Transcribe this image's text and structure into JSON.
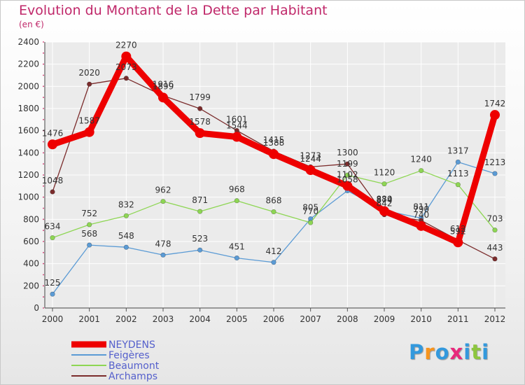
{
  "title": "Evolution du Montant de la Dette par Habitant",
  "subtitle": "(en €)",
  "logo": {
    "text": "Proxiti",
    "colors": [
      "#3399dd",
      "#f7941d",
      "#3399dd",
      "#e8297c",
      "#3399dd",
      "#8dc63f",
      "#3399dd"
    ]
  },
  "chart_data": {
    "type": "line",
    "title": "Evolution du Montant de la Dette par Habitant",
    "ylabel": "(en €)",
    "x": [
      "2000",
      "2001",
      "2002",
      "2003",
      "2004",
      "2005",
      "2006",
      "2007",
      "2008",
      "2009",
      "2010",
      "2011",
      "2012"
    ],
    "ylim": [
      0,
      2400
    ],
    "yticks": [
      0,
      200,
      400,
      600,
      800,
      1000,
      1200,
      1400,
      1600,
      1800,
      2000,
      2200,
      2400
    ],
    "grid": true,
    "legend_position": "bottom-left",
    "series": [
      {
        "name": "NEYDENS",
        "color": "#ee0000",
        "emphasis": true,
        "values": [
          1476,
          1587,
          2270,
          1899,
          1578,
          1544,
          1388,
          1244,
          1102,
          874,
          740,
          592,
          1742
        ],
        "labels": [
          "1476",
          "1587",
          "2270",
          "1899",
          "1578",
          "1544",
          "1388",
          "1244",
          "1102",
          "874",
          "740",
          "592",
          "1742"
        ]
      },
      {
        "name": "Feigères",
        "color": "#5b9bd5",
        "emphasis": false,
        "values": [
          125,
          568,
          548,
          478,
          523,
          451,
          412,
          805,
          1058,
          880,
          811,
          1317,
          1213
        ],
        "labels": [
          "125",
          "568",
          "548",
          "478",
          "523",
          "451",
          "412",
          "805",
          "1058",
          "880",
          "811",
          "1317",
          "1213"
        ]
      },
      {
        "name": "Beaumont",
        "color": "#8ed654",
        "emphasis": false,
        "values": [
          634,
          752,
          832,
          962,
          871,
          968,
          868,
          770,
          1199,
          1120,
          1240,
          1113,
          703
        ],
        "labels": [
          "634",
          "752",
          "832",
          "962",
          "871",
          "968",
          "868",
          "770",
          "1199",
          "1120",
          "1240",
          "1113",
          "703"
        ]
      },
      {
        "name": "Archamps",
        "color": "#7b2c2c",
        "emphasis": false,
        "values": [
          1048,
          2020,
          2073,
          1916,
          1799,
          1601,
          1415,
          1273,
          1300,
          842,
          790,
          612,
          443
        ],
        "labels": [
          "1048",
          "2020",
          "2073",
          "1916",
          "1799",
          "1601",
          "1415",
          "1273",
          "1300",
          "842",
          "790",
          "612",
          "443"
        ]
      }
    ]
  }
}
